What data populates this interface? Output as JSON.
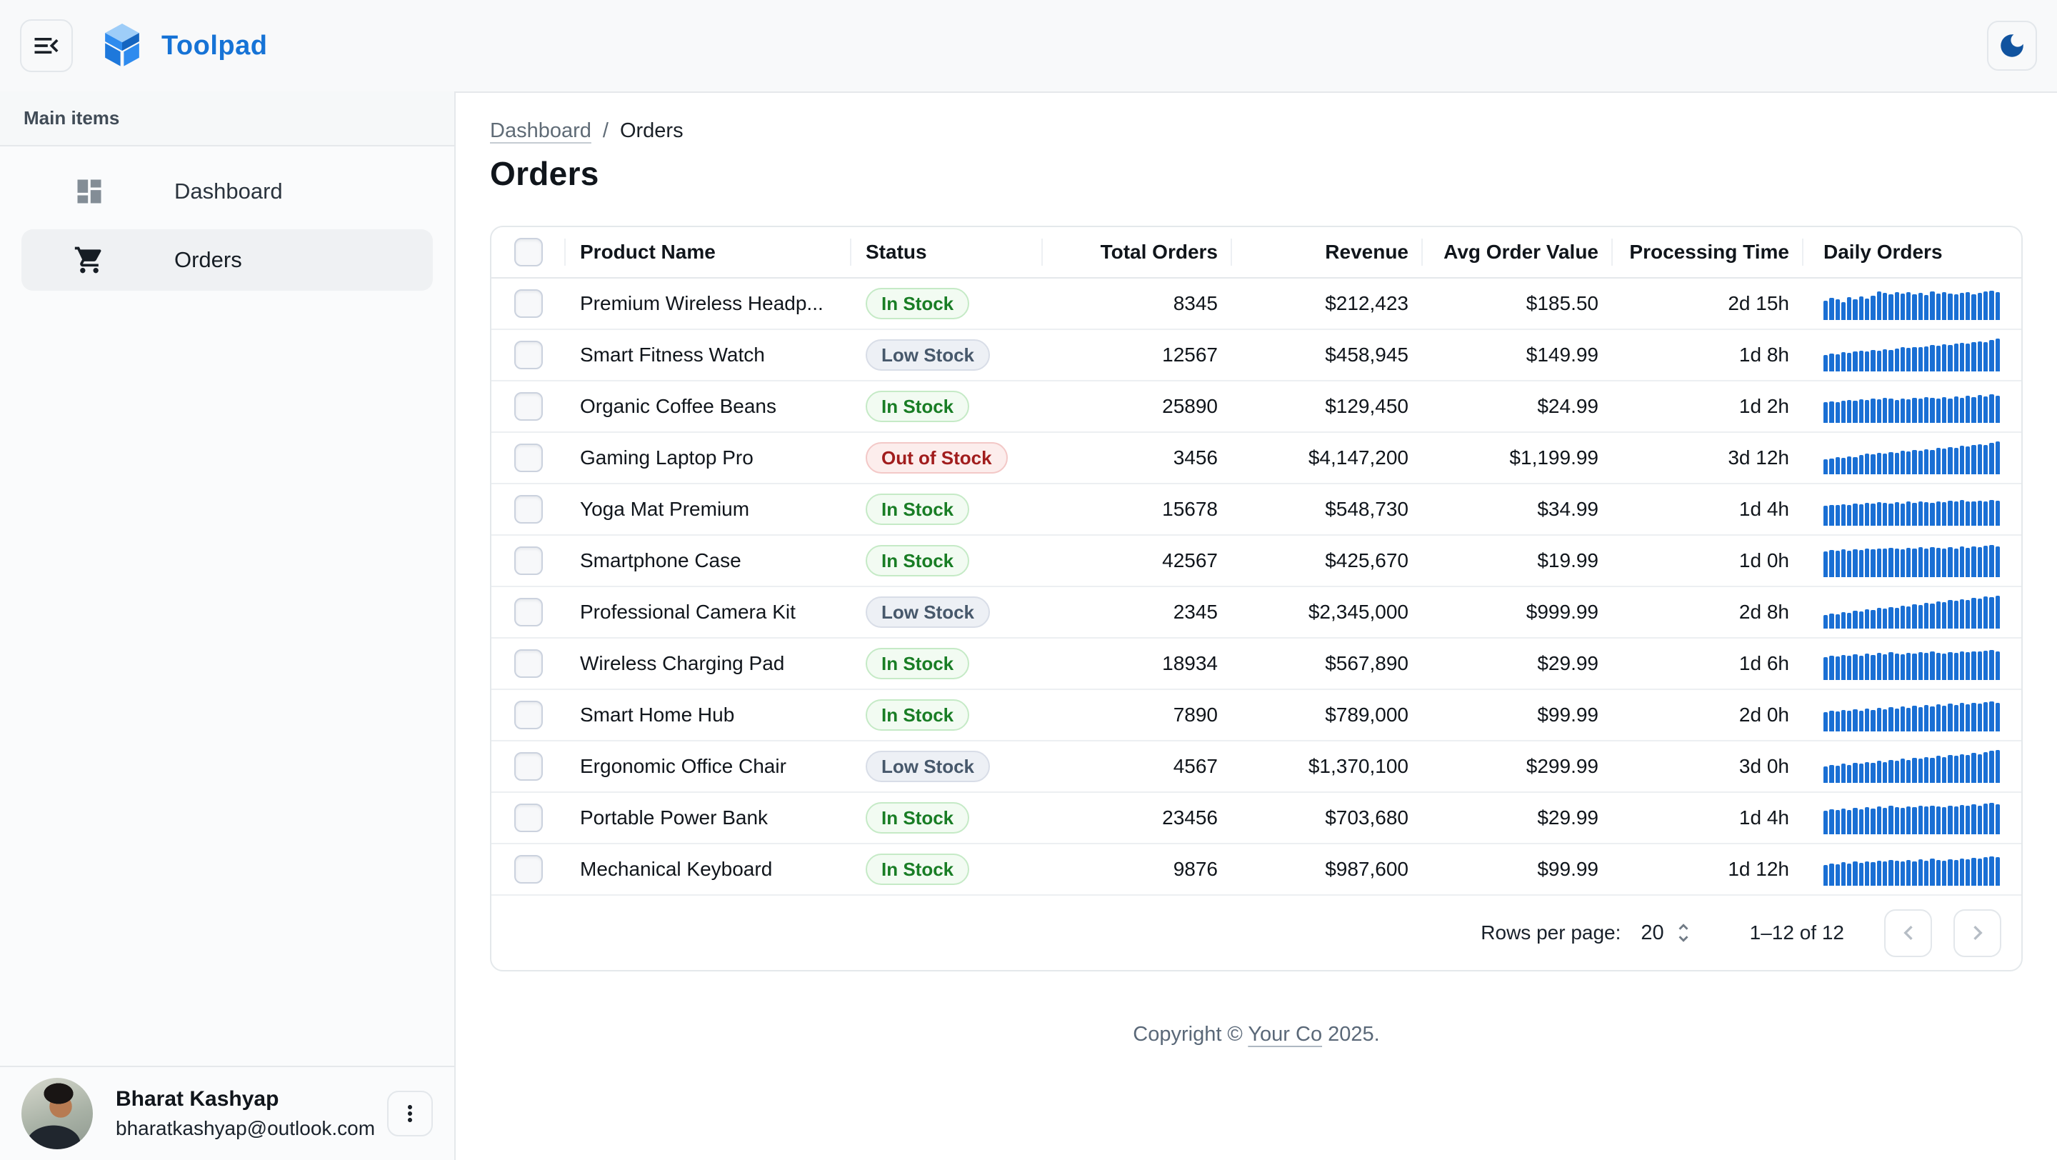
{
  "colors": {
    "accent": "#1673D6",
    "spark_bar": "#1A6FD4",
    "in_stock_text": "#197D25",
    "low_stock_text": "#47586B",
    "out_of_stock_text": "#A11D1D",
    "moon": "#10539F"
  },
  "header": {
    "app_name": "Toolpad"
  },
  "sidebar": {
    "section_label": "Main items",
    "items": [
      {
        "label": "Dashboard",
        "icon": "dashboard-icon",
        "selected": false
      },
      {
        "label": "Orders",
        "icon": "shopping-cart-icon",
        "selected": true
      }
    ],
    "user": {
      "name": "Bharat Kashyap",
      "email": "bharatkashyap@outlook.com"
    }
  },
  "breadcrumb": {
    "parent": "Dashboard",
    "separator": "/",
    "current": "Orders"
  },
  "page": {
    "title": "Orders"
  },
  "table": {
    "columns": [
      {
        "label": "",
        "align": "center"
      },
      {
        "label": "Product Name",
        "align": "left"
      },
      {
        "label": "Status",
        "align": "left"
      },
      {
        "label": "Total Orders",
        "align": "right"
      },
      {
        "label": "Revenue",
        "align": "right"
      },
      {
        "label": "Avg Order Value",
        "align": "right"
      },
      {
        "label": "Processing Time",
        "align": "right"
      },
      {
        "label": "Daily Orders",
        "align": "left"
      }
    ],
    "rows": [
      {
        "product": "Premium Wireless Headp...",
        "status": {
          "label": "In Stock",
          "variant": "in"
        },
        "total_orders": "8345",
        "revenue": "$212,423",
        "avg_order_value": "$185.50",
        "processing_time": "2d 15h",
        "spark": [
          58,
          68,
          62,
          55,
          70,
          64,
          72,
          66,
          75,
          88,
          82,
          78,
          85,
          80,
          84,
          79,
          83,
          77,
          86,
          81,
          84,
          80,
          78,
          82,
          85,
          79,
          83,
          87,
          90,
          84
        ]
      },
      {
        "product": "Smart Fitness Watch",
        "status": {
          "label": "Low Stock",
          "variant": "low"
        },
        "total_orders": "12567",
        "revenue": "$458,945",
        "avg_order_value": "$149.99",
        "processing_time": "1d 8h",
        "spark": [
          50,
          54,
          52,
          58,
          56,
          60,
          63,
          61,
          66,
          64,
          68,
          66,
          70,
          73,
          71,
          75,
          73,
          77,
          80,
          78,
          82,
          80,
          84,
          87,
          85,
          89,
          92,
          90,
          95,
          100
        ]
      },
      {
        "product": "Organic Coffee Beans",
        "status": {
          "label": "In Stock",
          "variant": "in"
        },
        "total_orders": "25890",
        "revenue": "$129,450",
        "avg_order_value": "$24.99",
        "processing_time": "1d 2h",
        "spark": [
          62,
          66,
          64,
          68,
          70,
          67,
          72,
          69,
          74,
          71,
          76,
          73,
          70,
          75,
          72,
          77,
          74,
          79,
          76,
          74,
          78,
          75,
          80,
          77,
          82,
          79,
          84,
          81,
          86,
          83
        ]
      },
      {
        "product": "Gaming Laptop Pro",
        "status": {
          "label": "Out of Stock",
          "variant": "out"
        },
        "total_orders": "3456",
        "revenue": "$4,147,200",
        "avg_order_value": "$1,199.99",
        "processing_time": "3d 12h",
        "spark": [
          45,
          48,
          52,
          50,
          55,
          53,
          58,
          62,
          60,
          65,
          63,
          68,
          66,
          71,
          69,
          74,
          72,
          77,
          75,
          80,
          78,
          83,
          81,
          86,
          84,
          89,
          92,
          90,
          96,
          100
        ]
      },
      {
        "product": "Yoga Mat Premium",
        "status": {
          "label": "In Stock",
          "variant": "in"
        },
        "total_orders": "15678",
        "revenue": "$548,730",
        "avg_order_value": "$34.99",
        "processing_time": "1d 4h",
        "spark": [
          60,
          64,
          62,
          66,
          63,
          68,
          65,
          70,
          67,
          72,
          69,
          67,
          71,
          68,
          73,
          70,
          75,
          72,
          70,
          74,
          71,
          76,
          73,
          78,
          75,
          73,
          77,
          74,
          79,
          76
        ]
      },
      {
        "product": "Smartphone Case",
        "status": {
          "label": "In Stock",
          "variant": "in"
        },
        "total_orders": "42567",
        "revenue": "$425,670",
        "avg_order_value": "$19.99",
        "processing_time": "1d 0h",
        "spark": [
          78,
          82,
          80,
          84,
          81,
          85,
          83,
          87,
          84,
          88,
          86,
          90,
          87,
          85,
          89,
          86,
          91,
          88,
          92,
          89,
          87,
          91,
          88,
          93,
          90,
          94,
          91,
          95,
          97,
          93
        ]
      },
      {
        "product": "Professional Camera Kit",
        "status": {
          "label": "Low Stock",
          "variant": "low"
        },
        "total_orders": "2345",
        "revenue": "$2,345,000",
        "avg_order_value": "$999.99",
        "processing_time": "2d 8h",
        "spark": [
          42,
          46,
          44,
          50,
          48,
          54,
          52,
          58,
          56,
          62,
          60,
          66,
          64,
          70,
          68,
          74,
          72,
          78,
          76,
          82,
          80,
          86,
          84,
          90,
          88,
          94,
          92,
          97,
          95,
          100
        ]
      },
      {
        "product": "Wireless Charging Pad",
        "status": {
          "label": "In Stock",
          "variant": "in"
        },
        "total_orders": "18934",
        "revenue": "$567,890",
        "avg_order_value": "$29.99",
        "processing_time": "1d 6h",
        "spark": [
          70,
          74,
          72,
          76,
          73,
          78,
          75,
          80,
          77,
          82,
          79,
          84,
          81,
          79,
          83,
          80,
          85,
          82,
          86,
          83,
          81,
          85,
          82,
          87,
          84,
          88,
          86,
          90,
          92,
          88
        ]
      },
      {
        "product": "Smart Home Hub",
        "status": {
          "label": "In Stock",
          "variant": "in"
        },
        "total_orders": "7890",
        "revenue": "$789,000",
        "avg_order_value": "$99.99",
        "processing_time": "2d 0h",
        "spark": [
          58,
          63,
          60,
          66,
          62,
          68,
          64,
          70,
          66,
          72,
          68,
          74,
          70,
          76,
          72,
          78,
          74,
          80,
          76,
          82,
          78,
          84,
          80,
          86,
          82,
          88,
          84,
          90,
          92,
          88
        ]
      },
      {
        "product": "Ergonomic Office Chair",
        "status": {
          "label": "Low Stock",
          "variant": "low"
        },
        "total_orders": "4567",
        "revenue": "$1,370,100",
        "avg_order_value": "$299.99",
        "processing_time": "3d 0h",
        "spark": [
          50,
          54,
          52,
          58,
          55,
          61,
          58,
          64,
          61,
          67,
          64,
          70,
          67,
          73,
          70,
          76,
          73,
          79,
          76,
          82,
          79,
          85,
          82,
          88,
          85,
          91,
          88,
          94,
          97,
          100
        ]
      },
      {
        "product": "Portable Power Bank",
        "status": {
          "label": "In Stock",
          "variant": "in"
        },
        "total_orders": "23456",
        "revenue": "$703,680",
        "avg_order_value": "$29.99",
        "processing_time": "1d 4h",
        "spark": [
          72,
          76,
          74,
          78,
          75,
          80,
          77,
          82,
          79,
          84,
          81,
          86,
          83,
          81,
          85,
          82,
          87,
          84,
          88,
          85,
          83,
          87,
          84,
          89,
          86,
          91,
          88,
          93,
          95,
          91
        ]
      },
      {
        "product": "Mechanical Keyboard",
        "status": {
          "label": "In Stock",
          "variant": "in"
        },
        "total_orders": "9876",
        "revenue": "$987,600",
        "avg_order_value": "$99.99",
        "processing_time": "1d 12h",
        "spark": [
          64,
          68,
          66,
          71,
          68,
          73,
          70,
          75,
          72,
          77,
          74,
          79,
          76,
          74,
          78,
          75,
          80,
          77,
          82,
          79,
          77,
          81,
          78,
          83,
          80,
          85,
          82,
          87,
          90,
          86
        ]
      }
    ]
  },
  "pagination": {
    "rows_per_page_label": "Rows per page:",
    "rows_per_page": "20",
    "range": "1–12 of 12"
  },
  "footer": {
    "prefix": "Copyright © ",
    "company": "Your Co",
    "suffix": " 2025."
  }
}
